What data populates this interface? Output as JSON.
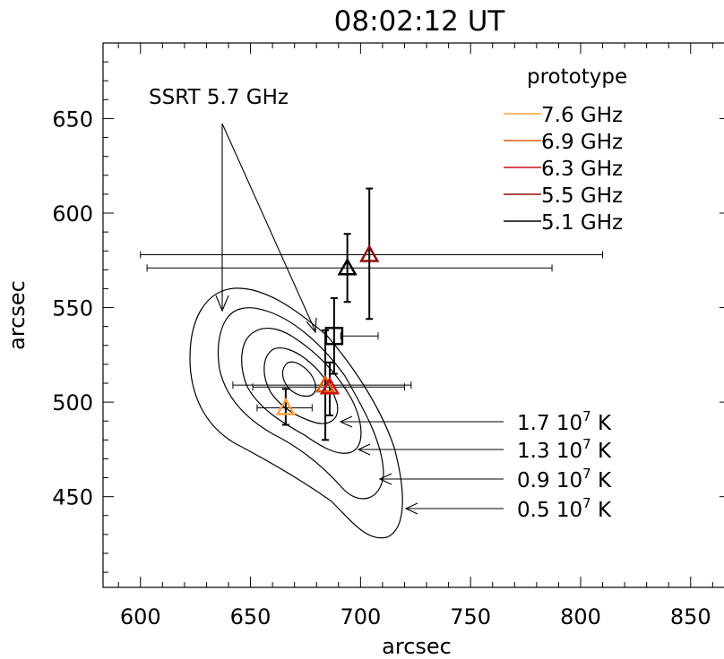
{
  "chart_data": {
    "type": "scatter",
    "title": "08:02:12 UT",
    "xlabel": "arcsec",
    "ylabel": "arcsec",
    "xlim": [
      583,
      868
    ],
    "ylim": [
      402,
      690
    ],
    "xticks": [
      600,
      650,
      700,
      750,
      800,
      850
    ],
    "yticks": [
      450,
      500,
      550,
      600,
      650
    ],
    "xtick_labels": [
      "600",
      "650",
      "700",
      "750",
      "800",
      "850"
    ],
    "ytick_labels": [
      "450",
      "500",
      "550",
      "600",
      "650"
    ],
    "legend_title": "prototype",
    "legend_position": "top-right",
    "series": [
      {
        "name": "7.6 GHz",
        "color": "#ffa040",
        "x": 666,
        "y": 497,
        "xerr": [
          653,
          678
        ],
        "yerr": [
          488,
          507
        ]
      },
      {
        "name": "6.9 GHz",
        "color": "#e05a10",
        "x": 684,
        "y": 509,
        "xerr": [
          642,
          723
        ],
        "yerr": [
          480,
          538
        ]
      },
      {
        "name": "6.3 GHz",
        "color": "#cc1010",
        "x": 686,
        "y": 508,
        "xerr": [
          651,
          720
        ],
        "yerr": [
          493,
          521
        ]
      },
      {
        "name": "5.5 GHz",
        "color": "#8b0e0e",
        "x": 704,
        "y": 578,
        "xerr": [
          600,
          810
        ],
        "yerr": [
          544,
          613
        ]
      },
      {
        "name": "5.1 GHz",
        "color": "#000000",
        "x": 694,
        "y": 571,
        "xerr": [
          603,
          787
        ],
        "yerr": [
          553,
          589
        ]
      }
    ],
    "ssrt": {
      "label": "SSRT 5.7 GHz",
      "x": 688,
      "y": 535,
      "xerr": [
        691,
        708
      ],
      "yerr": [
        515,
        555
      ]
    },
    "contour_labels": [
      "1.7 10",
      "1.3 10",
      "0.9 10",
      "0.5 10"
    ],
    "contour_label_exponent": "7",
    "contour_label_unit": "K",
    "contour_levels_kelvin": [
      17000000,
      13000000,
      9000000,
      5000000
    ]
  }
}
